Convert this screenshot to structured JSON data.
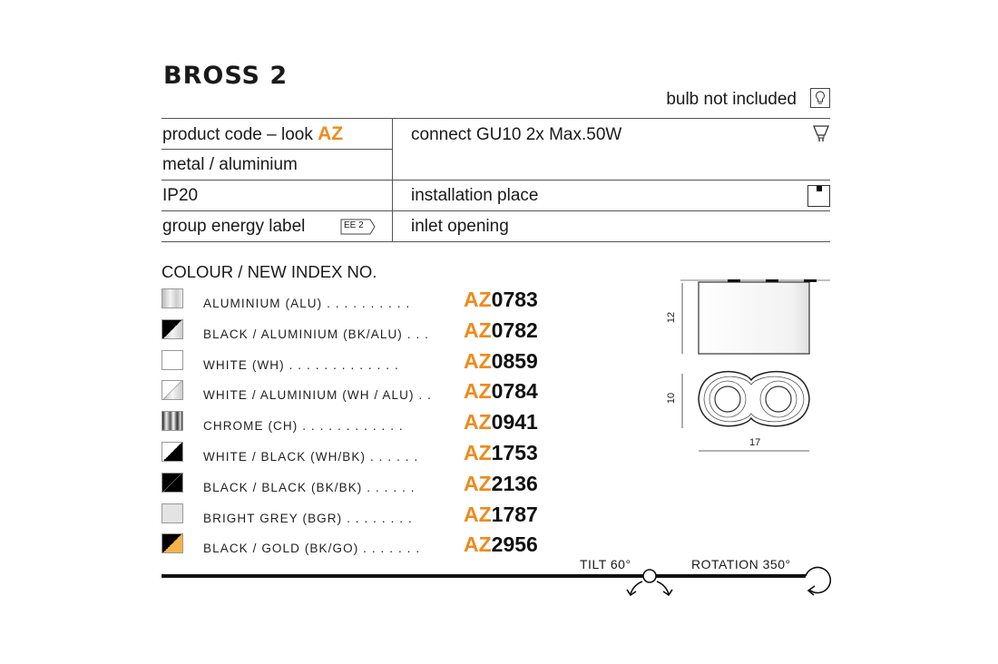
{
  "title": "BROSS 2",
  "bulb_note": "bulb not included",
  "spec": {
    "product_code_label": "product  code – look",
    "product_code_brand": "AZ",
    "material": "metal / aluminium",
    "ip": "IP20",
    "energy_label": "group energy label",
    "energy_badge": "EE 2",
    "connect": "connect GU10 2x Max.50W",
    "installation": "installation place",
    "inlet": "inlet opening"
  },
  "colours_heading": "COLOUR / NEW INDEX NO.",
  "colours": [
    {
      "label": "ALUMINIUM (ALU)",
      "dots": ". . . . . . . . . .",
      "prefix": "AZ",
      "number": "0783",
      "swatch": "alu"
    },
    {
      "label": "BLACK / ALUMINIUM (BK/ALU)",
      "dots": ". . .",
      "prefix": "AZ",
      "number": "0782",
      "swatch": "bk-alu"
    },
    {
      "label": "WHITE (WH)",
      "dots": ". . . . . . . . . . . . .",
      "prefix": "AZ",
      "number": "0859",
      "swatch": "white"
    },
    {
      "label": "WHITE / ALUMINIUM (WH / ALU)",
      "dots": ". .",
      "prefix": "AZ",
      "number": "0784",
      "swatch": "wh-alu"
    },
    {
      "label": "CHROME (CH)",
      "dots": ". . . . . . . . . . . .",
      "prefix": "AZ",
      "number": "0941",
      "swatch": "chrome"
    },
    {
      "label": "WHITE / BLACK (WH/BK)",
      "dots": ". . . . . .",
      "prefix": "AZ",
      "number": "1753",
      "swatch": "wh-bk"
    },
    {
      "label": "BLACK / BLACK (BK/BK)",
      "dots": ". . . . . .",
      "prefix": "AZ",
      "number": "2136",
      "swatch": "bk-bk"
    },
    {
      "label": "BRIGHT GREY (BGR)",
      "dots": ". . . . . . . .",
      "prefix": "AZ",
      "number": "1787",
      "swatch": "grey"
    },
    {
      "label": "BLACK / GOLD (BK/GO)",
      "dots": ". . . . . . .",
      "prefix": "AZ",
      "number": "2956",
      "swatch": "bk-gold"
    }
  ],
  "dimensions": {
    "height": "12",
    "depth": "10",
    "width": "17"
  },
  "tilt": "TILT 60°",
  "rotation": "ROTATION 350°",
  "colors": {
    "accent": "#f08a1c",
    "gold": "#f5b34a"
  }
}
